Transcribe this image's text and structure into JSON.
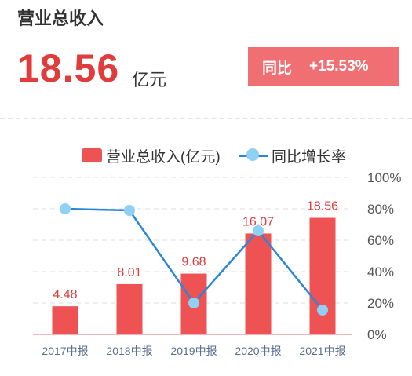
{
  "header": {
    "title": "营业总收入",
    "value": "18.56",
    "unit": "亿元",
    "yoy_label": "同比",
    "yoy_value": "+15.53%"
  },
  "legend": {
    "bar": "营业总收入(亿元)",
    "line": "同比增长率"
  },
  "colors": {
    "bar": "#ee5252",
    "line": "#2b86d9",
    "point": "#8fd0f5",
    "accent": "#e03c3c",
    "badge": "#ef6f72"
  },
  "chart_data": {
    "type": "bar",
    "categories": [
      "2017中报",
      "2018中报",
      "2019中报",
      "2020中报",
      "2021中报"
    ],
    "series": [
      {
        "name": "营业总收入(亿元)",
        "type": "bar",
        "values": [
          4.48,
          8.01,
          9.68,
          16.07,
          18.56
        ],
        "labels": [
          "4.48",
          "8.01",
          "9.68",
          "16.07",
          "18.56"
        ]
      },
      {
        "name": "同比增长率",
        "type": "line",
        "values": [
          80,
          79,
          20,
          66,
          15.53
        ],
        "axis": "right"
      }
    ],
    "right_axis": {
      "ticks": [
        "0%",
        "20%",
        "40%",
        "60%",
        "80%",
        "100%"
      ],
      "ylim": [
        0,
        100
      ]
    },
    "bar_ylim": [
      0,
      25
    ],
    "grid": true
  }
}
